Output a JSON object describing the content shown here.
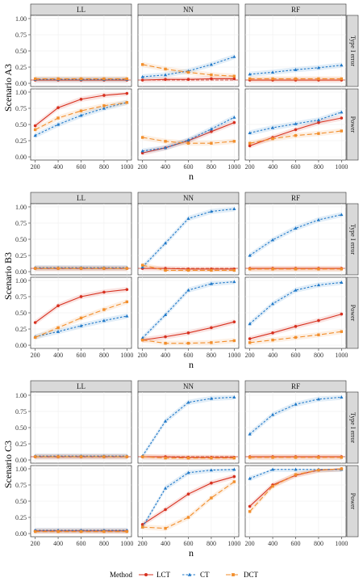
{
  "chart_data": {
    "type": "line",
    "x": [
      200,
      400,
      600,
      800,
      1000
    ],
    "xlabel": "n",
    "ylim": [
      0,
      1
    ],
    "yticks": [
      "0.00",
      "0.25",
      "0.50",
      "0.75",
      "1.00"
    ],
    "columns": [
      "LL",
      "NN",
      "RF"
    ],
    "rows": [
      "Type I error",
      "Power"
    ],
    "alpha_line": 0.05,
    "legend": {
      "title": "Method",
      "position": "bottom",
      "entries": [
        {
          "name": "LCT",
          "color": "#d7301f",
          "marker": "circle",
          "dash": "solid"
        },
        {
          "name": "CT",
          "color": "#1f78c8",
          "marker": "triangle",
          "dash": "dotted"
        },
        {
          "name": "DCT",
          "color": "#f28e2b",
          "marker": "square",
          "dash": "dashed"
        }
      ]
    },
    "scenarios": [
      {
        "name": "Scenario A3",
        "panels": {
          "Type I error": {
            "LL": {
              "LCT": [
                0.05,
                0.05,
                0.05,
                0.05,
                0.05
              ],
              "CT": [
                0.06,
                0.06,
                0.06,
                0.06,
                0.06
              ],
              "DCT": [
                0.07,
                0.07,
                0.07,
                0.07,
                0.07
              ]
            },
            "NN": {
              "LCT": [
                0.05,
                0.06,
                0.06,
                0.07,
                0.07
              ],
              "CT": [
                0.1,
                0.13,
                0.19,
                0.29,
                0.41
              ],
              "DCT": [
                0.29,
                0.22,
                0.17,
                0.13,
                0.11
              ]
            },
            "RF": {
              "LCT": [
                0.05,
                0.05,
                0.05,
                0.05,
                0.05
              ],
              "CT": [
                0.14,
                0.17,
                0.21,
                0.24,
                0.28
              ],
              "DCT": [
                0.07,
                0.07,
                0.07,
                0.07,
                0.07
              ]
            }
          },
          "Power": {
            "LL": {
              "LCT": [
                0.48,
                0.76,
                0.89,
                0.95,
                0.98
              ],
              "CT": [
                0.33,
                0.5,
                0.64,
                0.75,
                0.84
              ],
              "DCT": [
                0.42,
                0.6,
                0.71,
                0.79,
                0.84
              ]
            },
            "NN": {
              "LCT": [
                0.06,
                0.14,
                0.25,
                0.39,
                0.53
              ],
              "CT": [
                0.09,
                0.14,
                0.26,
                0.43,
                0.61
              ],
              "DCT": [
                0.3,
                0.24,
                0.21,
                0.21,
                0.24
              ]
            },
            "RF": {
              "LCT": [
                0.17,
                0.3,
                0.42,
                0.53,
                0.6
              ],
              "CT": [
                0.37,
                0.45,
                0.51,
                0.57,
                0.69
              ],
              "DCT": [
                0.21,
                0.28,
                0.33,
                0.36,
                0.4
              ]
            }
          }
        }
      },
      {
        "name": "Scenario B3",
        "panels": {
          "Type I error": {
            "LL": {
              "LCT": [
                0.05,
                0.05,
                0.05,
                0.05,
                0.05
              ],
              "CT": [
                0.06,
                0.06,
                0.06,
                0.06,
                0.06
              ],
              "DCT": [
                0.05,
                0.05,
                0.05,
                0.05,
                0.05
              ]
            },
            "NN": {
              "LCT": [
                0.05,
                0.05,
                0.04,
                0.04,
                0.04
              ],
              "CT": [
                0.07,
                0.44,
                0.82,
                0.93,
                0.97
              ],
              "DCT": [
                0.1,
                0.02,
                0.02,
                0.02,
                0.02
              ]
            },
            "RF": {
              "LCT": [
                0.05,
                0.05,
                0.05,
                0.05,
                0.05
              ],
              "CT": [
                0.25,
                0.49,
                0.67,
                0.8,
                0.88
              ],
              "DCT": [
                0.04,
                0.04,
                0.04,
                0.04,
                0.04
              ]
            }
          },
          "Power": {
            "LL": {
              "LCT": [
                0.35,
                0.61,
                0.75,
                0.82,
                0.86
              ],
              "CT": [
                0.13,
                0.21,
                0.3,
                0.38,
                0.45
              ],
              "DCT": [
                0.12,
                0.27,
                0.42,
                0.55,
                0.67
              ]
            },
            "NN": {
              "LCT": [
                0.08,
                0.13,
                0.19,
                0.27,
                0.36
              ],
              "CT": [
                0.11,
                0.47,
                0.85,
                0.95,
                0.98
              ],
              "DCT": [
                0.08,
                0.03,
                0.03,
                0.04,
                0.07
              ]
            },
            "RF": {
              "LCT": [
                0.1,
                0.19,
                0.29,
                0.38,
                0.48
              ],
              "CT": [
                0.33,
                0.64,
                0.85,
                0.93,
                0.97
              ],
              "DCT": [
                0.04,
                0.08,
                0.12,
                0.16,
                0.21
              ]
            }
          }
        }
      },
      {
        "name": "Scenario C3",
        "panels": {
          "Type I error": {
            "LL": {
              "LCT": [
                0.05,
                0.05,
                0.05,
                0.05,
                0.05
              ],
              "CT": [
                0.06,
                0.06,
                0.06,
                0.06,
                0.06
              ],
              "DCT": [
                0.05,
                0.05,
                0.05,
                0.05,
                0.05
              ]
            },
            "NN": {
              "LCT": [
                0.05,
                0.05,
                0.04,
                0.04,
                0.04
              ],
              "CT": [
                0.06,
                0.6,
                0.89,
                0.95,
                0.97
              ],
              "DCT": [
                0.05,
                0.03,
                0.03,
                0.03,
                0.03
              ]
            },
            "RF": {
              "LCT": [
                0.05,
                0.05,
                0.05,
                0.05,
                0.05
              ],
              "CT": [
                0.4,
                0.7,
                0.86,
                0.94,
                0.97
              ],
              "DCT": [
                0.04,
                0.04,
                0.04,
                0.04,
                0.04
              ]
            }
          },
          "Power": {
            "LL": {
              "LCT": [
                0.04,
                0.04,
                0.04,
                0.04,
                0.04
              ],
              "CT": [
                0.05,
                0.05,
                0.05,
                0.05,
                0.05
              ],
              "DCT": [
                0.03,
                0.03,
                0.03,
                0.03,
                0.03
              ]
            },
            "NN": {
              "LCT": [
                0.14,
                0.37,
                0.61,
                0.78,
                0.88
              ],
              "CT": [
                0.1,
                0.7,
                0.94,
                0.98,
                0.99
              ],
              "DCT": [
                0.1,
                0.08,
                0.25,
                0.55,
                0.8
              ]
            },
            "RF": {
              "LCT": [
                0.42,
                0.75,
                0.9,
                0.98,
                1.0
              ],
              "CT": [
                0.85,
                0.99,
                0.99,
                0.99,
                0.99
              ],
              "DCT": [
                0.34,
                0.73,
                0.91,
                0.98,
                1.0
              ]
            }
          }
        }
      }
    ]
  }
}
